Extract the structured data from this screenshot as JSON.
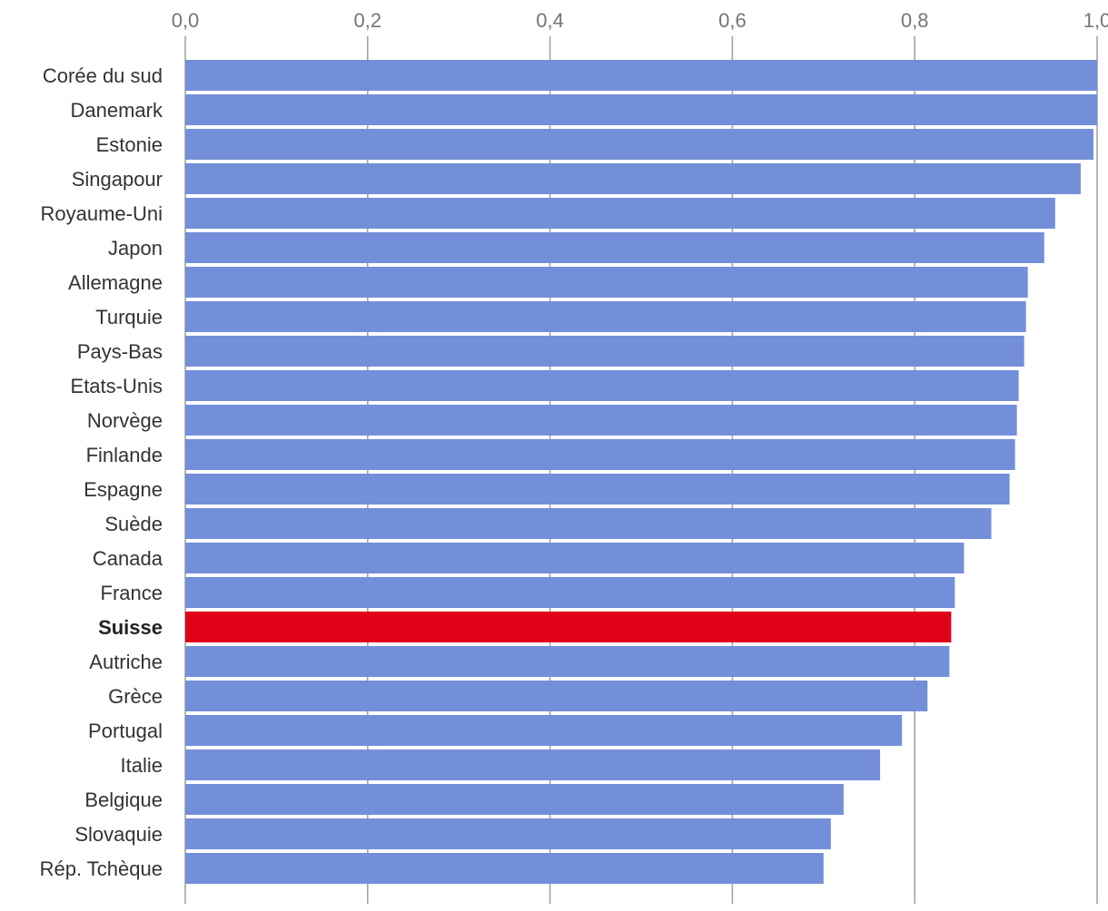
{
  "chart_data": {
    "type": "bar",
    "orientation": "horizontal",
    "title": "",
    "xlabel": "",
    "ylabel": "",
    "xlim": [
      0,
      1.0
    ],
    "x_ticks": [
      0,
      0.2,
      0.4,
      0.6,
      0.8,
      1.0
    ],
    "x_tick_labels": [
      "0,0",
      "0,2",
      "0,4",
      "0,6",
      "0,8",
      "1,0"
    ],
    "tick_position": "top",
    "grid": true,
    "categories": [
      "Corée du sud",
      "Danemark",
      "Estonie",
      "Singapour",
      "Royaume-Uni",
      "Japon",
      "Allemagne",
      "Turquie",
      "Pays-Bas",
      "Etats-Unis",
      "Norvège",
      "Finlande",
      "Espagne",
      "Suède",
      "Canada",
      "France",
      "Suisse",
      "Autriche",
      "Grèce",
      "Portugal",
      "Italie",
      "Belgique",
      "Slovaquie",
      "Rép. Tchèque"
    ],
    "values": [
      1.0,
      1.0,
      0.996,
      0.982,
      0.954,
      0.942,
      0.924,
      0.922,
      0.92,
      0.914,
      0.912,
      0.91,
      0.904,
      0.884,
      0.854,
      0.844,
      0.84,
      0.838,
      0.814,
      0.786,
      0.762,
      0.722,
      0.708,
      0.7
    ],
    "highlight": "Suisse",
    "colors": {
      "bar": "#738fd9",
      "highlight": "#e0001a",
      "grid": "#9e9e9e"
    }
  }
}
